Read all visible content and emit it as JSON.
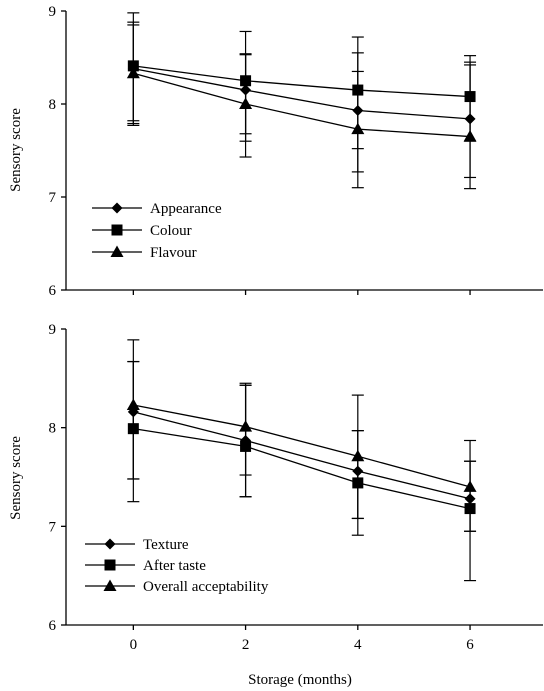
{
  "figure": {
    "xlabel": "Storage (months)"
  },
  "chart_data": [
    {
      "type": "line",
      "title": "",
      "xlabel": "",
      "ylabel": "Sensory score",
      "x": [
        0,
        2,
        4,
        6
      ],
      "xticks": [
        "0",
        "2",
        "4",
        "6"
      ],
      "yticks": [
        "6",
        "7",
        "8",
        "9"
      ],
      "xlim": [
        -1.2,
        7.3
      ],
      "ylim": [
        6,
        9
      ],
      "grid": false,
      "legend_position": "bottom-left",
      "series": [
        {
          "name": "Appearance",
          "marker": "diamond",
          "values": [
            8.38,
            8.15,
            7.93,
            7.84
          ],
          "error": [
            [
              7.82,
              8.85
            ],
            [
              7.68,
              8.53
            ],
            [
              7.27,
              8.55
            ],
            [
              7.21,
              8.42
            ]
          ]
        },
        {
          "name": "Colour",
          "marker": "square",
          "values": [
            8.41,
            8.25,
            8.15,
            8.08
          ],
          "error": [
            [
              7.79,
              8.98
            ],
            [
              7.6,
              8.78
            ],
            [
              7.52,
              8.72
            ],
            [
              7.6,
              8.52
            ]
          ]
        },
        {
          "name": "Flavour",
          "marker": "triangle",
          "values": [
            8.33,
            8.0,
            7.73,
            7.65
          ],
          "error": [
            [
              7.77,
              8.88
            ],
            [
              7.43,
              8.54
            ],
            [
              7.1,
              8.35
            ],
            [
              7.09,
              8.45
            ]
          ]
        }
      ]
    },
    {
      "type": "line",
      "title": "",
      "xlabel": "",
      "ylabel": "Sensory score",
      "x": [
        0,
        2,
        4,
        6
      ],
      "xticks": [
        "0",
        "2",
        "4",
        "6"
      ],
      "yticks": [
        "6",
        "7",
        "8",
        "9"
      ],
      "xlim": [
        -1.2,
        7.3
      ],
      "ylim": [
        6,
        9
      ],
      "grid": false,
      "legend_position": "bottom-left",
      "series": [
        {
          "name": "Texture",
          "marker": "diamond",
          "values": [
            8.16,
            7.87,
            7.56,
            7.28
          ],
          "error": [
            [
              7.48,
              8.67
            ],
            [
              7.3,
              8.43
            ],
            [
              7.08,
              7.97
            ],
            [
              6.95,
              7.66
            ]
          ]
        },
        {
          "name": "After taste",
          "marker": "square",
          "values": [
            7.99,
            7.81,
            7.44,
            7.18
          ],
          "error": [
            [
              7.25,
              8.67
            ],
            [
              7.3,
              8.43
            ],
            [
              6.91,
              7.97
            ],
            [
              6.45,
              7.66
            ]
          ]
        },
        {
          "name": "Overall acceptability",
          "marker": "triangle",
          "values": [
            8.23,
            8.01,
            7.71,
            7.4
          ],
          "error": [
            [
              7.48,
              8.89
            ],
            [
              7.52,
              8.45
            ],
            [
              7.08,
              8.33
            ],
            [
              6.95,
              7.87
            ]
          ]
        }
      ]
    }
  ]
}
